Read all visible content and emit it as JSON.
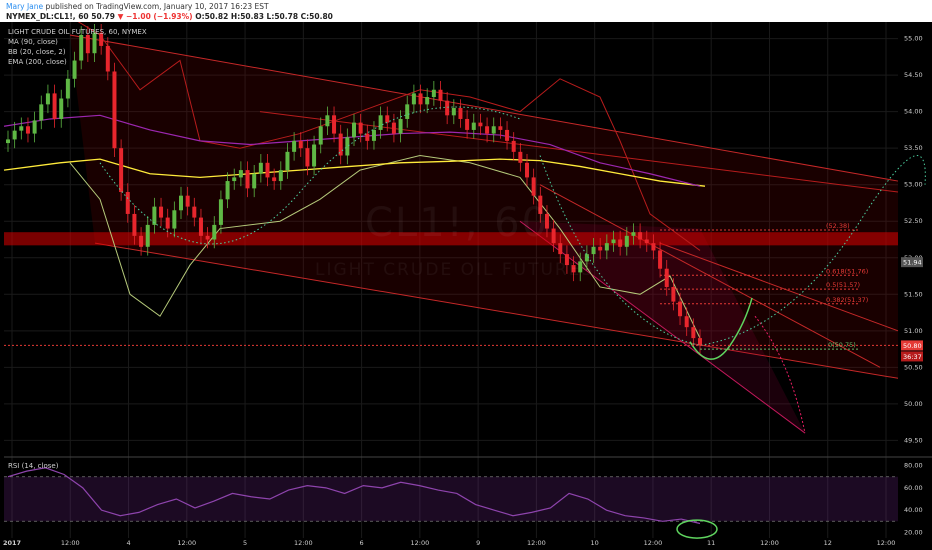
{
  "header": {
    "author": "Mary Jane",
    "published": "published on TradingView.com, January 10, 2017 16:23 EST",
    "symbol_line": "NYMEX_DL:CL1!, 60",
    "last": "50.79",
    "change": "▼ −1.00 (−1.93%)",
    "ohlc": "O:50.82 H:50.83 L:50.78 C:50.80"
  },
  "legend": {
    "title": "LIGHT CRUDE OIL FUTURES, 60, NYMEX",
    "ma": "MA (90, close)",
    "bb": "BB (20, close, 2)",
    "ema": "EMA (200, close)",
    "rsi": "RSI (14, close)"
  },
  "watermark": {
    "symbol": "CL1!, 60",
    "name": "LIGHT CRUDE OIL FUTURES"
  },
  "colors": {
    "bg": "#000000",
    "up": "#5fb845",
    "down": "#e8262d",
    "ema": "#ffeb3b",
    "ma": "#9c27b0",
    "bb": "#b71c1c",
    "rsi": "#8e44ad",
    "fib": "#e53935"
  },
  "chart_data": [
    {
      "type": "candlestick",
      "title": "LIGHT CRUDE OIL FUTURES, 60, NYMEX",
      "ylim": [
        49.3,
        55.2
      ],
      "y_ticks": [
        55.0,
        54.5,
        54.0,
        53.5,
        53.0,
        52.5,
        52.0,
        51.5,
        51.0,
        50.5,
        50.0,
        49.5
      ],
      "x_ticks": [
        "2017",
        "12:00",
        "4",
        "12:00",
        "5",
        "12:00",
        "6",
        "12:00",
        "9",
        "12:00",
        "10",
        "12:00",
        "11",
        "12:00",
        "12",
        "12:00"
      ],
      "price_labels": {
        "last": "50.80",
        "countdown": "36:37",
        "level": "51.94"
      },
      "close_series": [
        53.62,
        53.74,
        53.8,
        53.7,
        53.88,
        54.1,
        54.25,
        53.9,
        54.18,
        54.45,
        54.7,
        55.05,
        54.8,
        55.08,
        54.9,
        54.55,
        53.5,
        52.9,
        52.6,
        52.3,
        52.15,
        52.45,
        52.7,
        52.55,
        52.4,
        52.65,
        52.85,
        52.7,
        52.55,
        52.3,
        52.25,
        52.45,
        52.8,
        53.05,
        53.1,
        53.2,
        52.95,
        53.15,
        53.3,
        53.1,
        53.05,
        53.2,
        53.45,
        53.6,
        53.5,
        53.25,
        53.55,
        53.8,
        53.95,
        53.7,
        53.4,
        53.65,
        53.85,
        53.7,
        53.6,
        53.75,
        53.95,
        53.85,
        53.7,
        53.9,
        54.1,
        54.25,
        54.1,
        54.2,
        54.3,
        54.15,
        53.95,
        54.05,
        53.9,
        53.75,
        53.85,
        53.8,
        53.7,
        53.8,
        53.75,
        53.6,
        53.45,
        53.3,
        53.1,
        52.85,
        52.6,
        52.4,
        52.2,
        52.05,
        51.9,
        51.8,
        51.95,
        52.05,
        52.15,
        52.1,
        52.2,
        52.25,
        52.15,
        52.3,
        52.35,
        52.25,
        52.2,
        52.1,
        51.85,
        51.6,
        51.4,
        51.2,
        51.05,
        50.9,
        50.8
      ],
      "fib_levels": [
        {
          "label": "(52.38)",
          "value": 52.38
        },
        {
          "label": "0.618(51.76)",
          "value": 51.76
        },
        {
          "label": "0.5(51.57)",
          "value": 51.57
        },
        {
          "label": "0.382(51.37)",
          "value": 51.37
        },
        {
          "label": "0(50.75)",
          "value": 50.75
        }
      ],
      "indicators": [
        "MA (90, close)",
        "BB (20, close, 2)",
        "EMA (200, close)"
      ]
    },
    {
      "type": "line",
      "title": "RSI (14, close)",
      "ylim": [
        15,
        85
      ],
      "y_ticks": [
        80.0,
        60.0,
        40.0,
        20.0
      ],
      "series": [
        {
          "name": "RSI (14, close)",
          "values": [
            70,
            75,
            78,
            72,
            60,
            40,
            35,
            38,
            45,
            50,
            42,
            48,
            55,
            52,
            50,
            58,
            62,
            60,
            55,
            62,
            60,
            65,
            62,
            58,
            55,
            45,
            40,
            35,
            38,
            42,
            55,
            50,
            40,
            35,
            33,
            30,
            32,
            28
          ]
        }
      ]
    }
  ]
}
